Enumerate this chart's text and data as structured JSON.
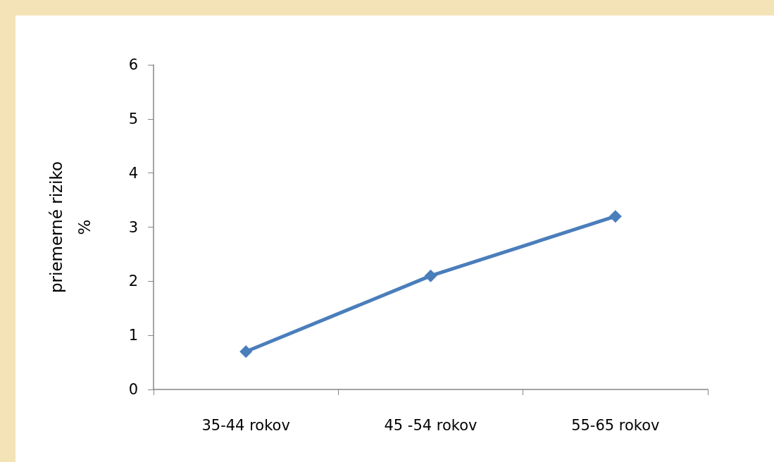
{
  "chart_data": {
    "type": "line",
    "ylabel": "priemerné riziko\n%",
    "categories": [
      "35-44 rokov",
      "45 -54 rokov",
      "55-65 rokov"
    ],
    "series": [
      {
        "color": "#4a7ebb",
        "values": [
          0.7,
          2.1,
          3.2
        ]
      }
    ],
    "ylim": [
      0,
      6
    ],
    "yticks": [
      0,
      1,
      2,
      3,
      4,
      5,
      6
    ],
    "grid": false,
    "marker": "diamond",
    "line_style": "solid"
  }
}
